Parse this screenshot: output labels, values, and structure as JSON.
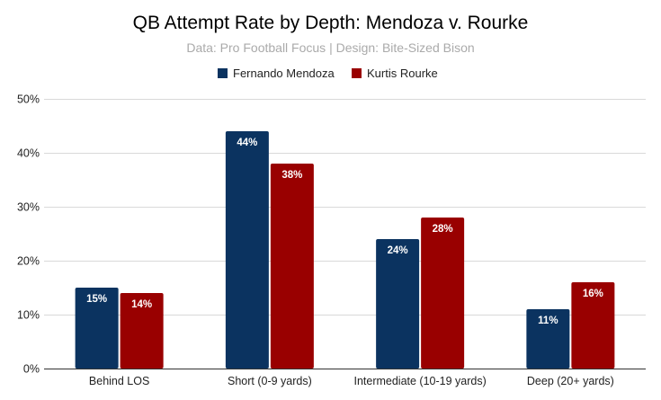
{
  "chart_data": {
    "type": "bar",
    "title": "QB Attempt Rate by Depth: Mendoza v. Rourke",
    "subtitle": "Data: Pro Football Focus | Design: Bite-Sized Bison",
    "categories": [
      "Behind LOS",
      "Short (0-9 yards)",
      "Intermediate (10-19 yards)",
      "Deep (20+ yards)"
    ],
    "series": [
      {
        "name": "Fernando Mendoza",
        "color": "#0b3360",
        "values": [
          15,
          44,
          24,
          11
        ],
        "labels": [
          "15%",
          "44%",
          "24%",
          "11%"
        ]
      },
      {
        "name": "Kurtis Rourke",
        "color": "#990000",
        "values": [
          14,
          38,
          28,
          16
        ],
        "labels": [
          "14%",
          "38%",
          "28%",
          "16%"
        ]
      }
    ],
    "ylim": [
      0,
      50
    ],
    "y_ticks": [
      0,
      10,
      20,
      30,
      40,
      50
    ],
    "y_tick_labels": [
      "0%",
      "10%",
      "20%",
      "30%",
      "40%",
      "50%"
    ],
    "grid": true,
    "legend_position": "top-center",
    "xlabel": "",
    "ylabel": ""
  }
}
